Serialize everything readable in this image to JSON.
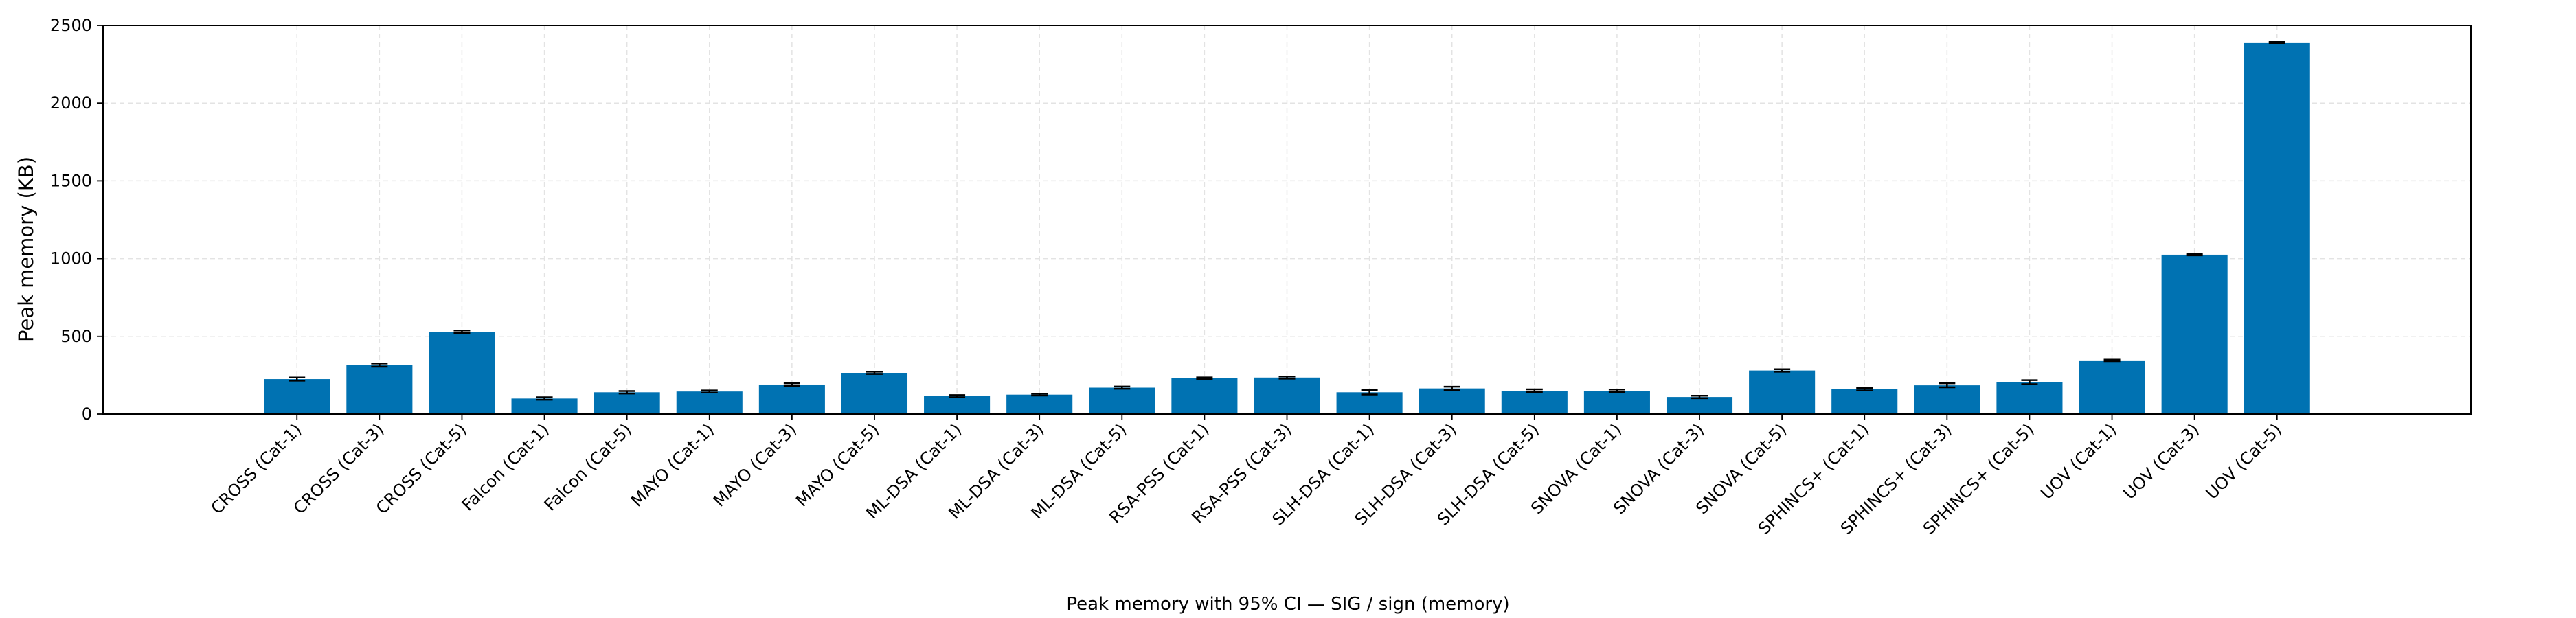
{
  "chart_data": {
    "type": "bar",
    "title": "",
    "caption": "Peak memory with 95% CI — SIG / sign (memory)",
    "xlabel": "",
    "ylabel": "Peak memory (KB)",
    "ylim": [
      0,
      2500
    ],
    "yticks": [
      0,
      500,
      1000,
      1500,
      2000,
      2500
    ],
    "grid": true,
    "legend": "none",
    "bar_color": "#0072b2",
    "errorbar_color": "#000000",
    "grid_color": "#e3e3e3",
    "categories": [
      "CROSS (Cat-1)",
      "CROSS (Cat-3)",
      "CROSS (Cat-5)",
      "Falcon (Cat-1)",
      "Falcon (Cat-5)",
      "MAYO (Cat-1)",
      "MAYO (Cat-3)",
      "MAYO (Cat-5)",
      "ML-DSA (Cat-1)",
      "ML-DSA (Cat-3)",
      "ML-DSA (Cat-5)",
      "RSA-PSS (Cat-1)",
      "RSA-PSS (Cat-3)",
      "SLH-DSA (Cat-1)",
      "SLH-DSA (Cat-3)",
      "SLH-DSA (Cat-5)",
      "SNOVA (Cat-1)",
      "SNOVA (Cat-3)",
      "SNOVA (Cat-5)",
      "SPHINCS+ (Cat-1)",
      "SPHINCS+ (Cat-3)",
      "SPHINCS+ (Cat-5)",
      "UOV (Cat-1)",
      "UOV (Cat-3)",
      "UOV (Cat-5)"
    ],
    "values": [
      225,
      315,
      530,
      100,
      140,
      145,
      190,
      265,
      115,
      125,
      170,
      230,
      235,
      140,
      165,
      150,
      150,
      110,
      280,
      160,
      185,
      205,
      345,
      1025,
      2390
    ],
    "ci_low": [
      215,
      305,
      522,
      92,
      132,
      138,
      182,
      258,
      108,
      119,
      163,
      225,
      228,
      126,
      154,
      141,
      142,
      102,
      272,
      152,
      172,
      192,
      340,
      1021,
      2386
    ],
    "ci_high": [
      235,
      325,
      538,
      108,
      148,
      152,
      198,
      272,
      122,
      131,
      177,
      236,
      242,
      154,
      176,
      159,
      158,
      118,
      288,
      168,
      198,
      218,
      350,
      1029,
      2394
    ]
  }
}
